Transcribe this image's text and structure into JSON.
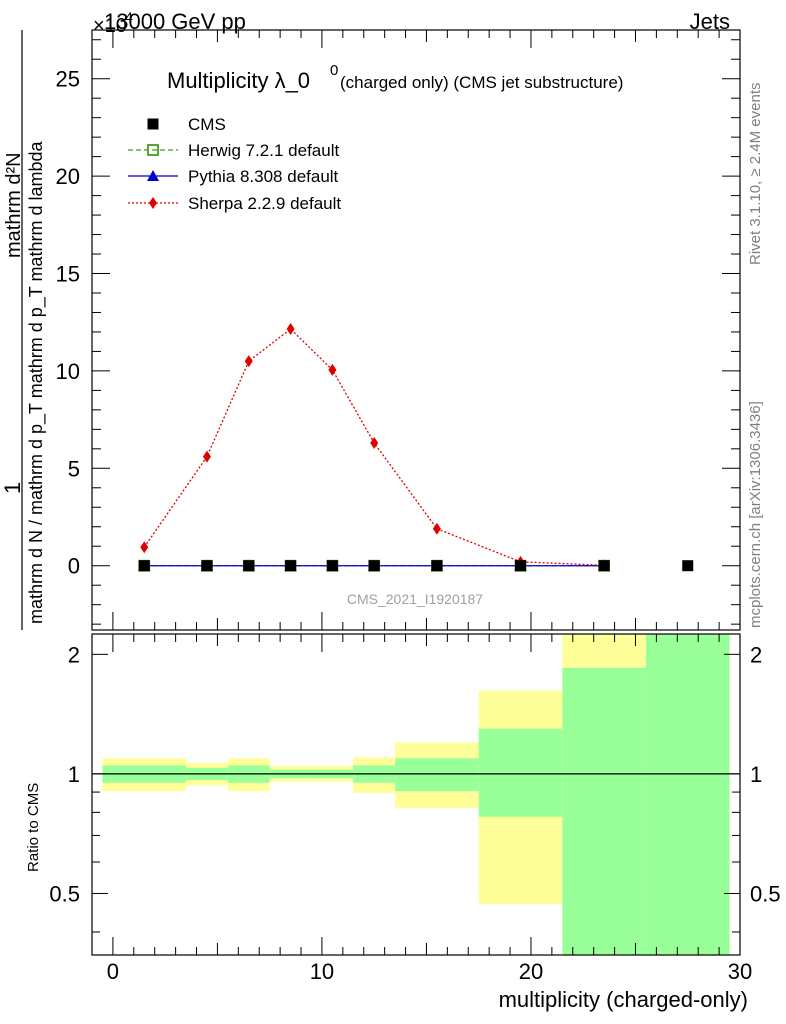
{
  "header": {
    "energy_label": "13000 GeV pp",
    "process_label": "Jets",
    "exponent_label": "×10"
  },
  "side_labels": {
    "rivet": "Rivet 3.1.10, ≥ 2.4M events",
    "mcplots": "mcplots.cern.ch [arXiv:1306.3436]"
  },
  "chart_data": [
    {
      "type": "line",
      "title_main": "Multiplicity λ_0",
      "title_sup": "0",
      "title_sub": "(charged only) (CMS jet substructure)",
      "ylabel_numerator": "mathrm d²N",
      "ylabel_denominator": "mathrm d N / mathrm d p_T mathrm d p_T mathrm d lambda",
      "ylabel_one": "1",
      "watermark": "CMS_2021_I1920187",
      "xlim": [
        -1,
        30
      ],
      "ylim": [
        -3.3,
        27.5
      ],
      "yticks": [
        0,
        5,
        10,
        15,
        20,
        25
      ],
      "grid": false,
      "legend_position": "top-left",
      "legend": [
        "CMS",
        "Herwig 7.2.1 default",
        "Pythia 8.308 default",
        "Sherpa 2.2.9 default"
      ],
      "series": [
        {
          "name": "CMS",
          "color": "#000000",
          "marker": "square",
          "x": [
            1.5,
            4.5,
            6.5,
            8.5,
            10.5,
            12.5,
            15.5,
            19.5,
            23.5,
            27.5
          ],
          "y": [
            0,
            0,
            0,
            0,
            0,
            0,
            0,
            0,
            0,
            0
          ]
        },
        {
          "name": "Herwig 7.2.1 default",
          "color": "#4a9a1e",
          "marker": "open-square",
          "line": "dashed",
          "x": [
            1.5,
            4.5,
            6.5,
            8.5,
            10.5,
            12.5,
            15.5,
            19.5,
            23.5
          ],
          "y": [
            0,
            0,
            0,
            0,
            0,
            0,
            0,
            0,
            0
          ]
        },
        {
          "name": "Pythia 8.308 default",
          "color": "#0000cc",
          "marker": "triangle",
          "line": "solid",
          "x": [
            1.5,
            4.5,
            6.5,
            8.5,
            10.5,
            12.5,
            15.5,
            19.5,
            23.5
          ],
          "y": [
            0,
            0,
            0,
            0,
            0,
            0,
            0,
            0,
            0
          ]
        },
        {
          "name": "Sherpa 2.2.9 default",
          "color": "#e00000",
          "marker": "diamond",
          "line": "dotted",
          "x": [
            1.5,
            4.5,
            6.5,
            8.5,
            10.5,
            12.5,
            15.5,
            19.5,
            23.5
          ],
          "y": [
            0.95,
            5.6,
            10.5,
            12.15,
            10.05,
            6.3,
            1.9,
            0.2,
            0.02
          ]
        }
      ]
    },
    {
      "type": "area",
      "ylabel": "Ratio to CMS",
      "xlabel": "multiplicity (charged-only)",
      "xlim": [
        -1,
        30
      ],
      "ylim": [
        0.35,
        2.25
      ],
      "xticks": [
        0,
        10,
        20,
        30
      ],
      "yticks": [
        0.5,
        1,
        2
      ],
      "reference_line": 1,
      "bins": [
        {
          "x0": -0.5,
          "x1": 3.5,
          "yellow": [
            0.905,
            1.095
          ],
          "green": [
            0.95,
            1.05
          ]
        },
        {
          "x0": 3.5,
          "x1": 5.5,
          "yellow": [
            0.935,
            1.065
          ],
          "green": [
            0.965,
            1.035
          ]
        },
        {
          "x0": 5.5,
          "x1": 7.5,
          "yellow": [
            0.905,
            1.095
          ],
          "green": [
            0.95,
            1.05
          ]
        },
        {
          "x0": 7.5,
          "x1": 9.5,
          "yellow": [
            0.955,
            1.045
          ],
          "green": [
            0.975,
            1.025
          ]
        },
        {
          "x0": 9.5,
          "x1": 11.5,
          "yellow": [
            0.955,
            1.045
          ],
          "green": [
            0.975,
            1.025
          ]
        },
        {
          "x0": 11.5,
          "x1": 13.5,
          "yellow": [
            0.895,
            1.1
          ],
          "green": [
            0.95,
            1.05
          ]
        },
        {
          "x0": 13.5,
          "x1": 17.5,
          "yellow": [
            0.82,
            1.2
          ],
          "green": [
            0.905,
            1.095
          ]
        },
        {
          "x0": 17.5,
          "x1": 21.5,
          "yellow": [
            0.47,
            1.62
          ],
          "green": [
            0.78,
            1.3
          ]
        },
        {
          "x0": 21.5,
          "x1": 25.5,
          "yellow": [
            0.35,
            2.25
          ],
          "green": [
            0.35,
            1.85
          ]
        },
        {
          "x0": 25.5,
          "x1": 29.5,
          "yellow": [
            0.35,
            2.25
          ],
          "green": [
            0.35,
            2.25
          ]
        }
      ],
      "band_colors": {
        "yellow": "#ffff99",
        "green": "#99ff99"
      }
    }
  ]
}
